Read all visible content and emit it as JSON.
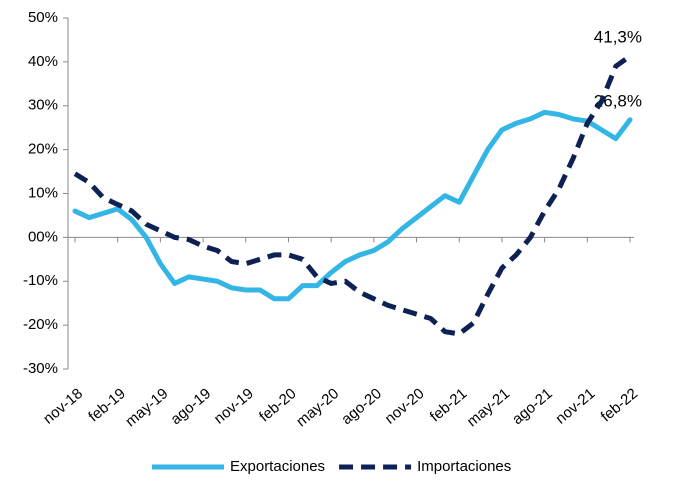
{
  "chart_data": {
    "type": "line",
    "categories": [
      "nov-18",
      null,
      null,
      "feb-19",
      null,
      null,
      "may-19",
      null,
      null,
      "ago-19",
      null,
      null,
      "nov-19",
      null,
      null,
      "feb-20",
      null,
      null,
      "may-20",
      null,
      null,
      "ago-20",
      null,
      null,
      "nov-20",
      null,
      null,
      "feb-21",
      null,
      null,
      "may-21",
      null,
      null,
      "ago-21",
      null,
      null,
      "nov-21",
      null,
      null,
      "feb-22"
    ],
    "series": [
      {
        "name": "Exportaciones",
        "color": "#33b5e5",
        "dash": false,
        "values": [
          6,
          4.5,
          5.5,
          6.5,
          4,
          0,
          -6,
          -10.5,
          -9,
          -9.5,
          -10,
          -11.5,
          -12,
          -12,
          -14,
          -14,
          -11,
          -11,
          -8,
          -5.5,
          -4,
          -3,
          -1,
          2,
          4.5,
          7,
          9.5,
          8,
          14,
          20,
          24.5,
          26,
          27,
          28.5,
          28,
          27,
          26.5,
          24.5,
          22.5,
          26.8
        ],
        "value_labels": [
          null,
          null,
          null,
          null,
          null,
          null,
          null,
          null,
          null,
          null,
          null,
          null,
          null,
          null,
          null,
          null,
          null,
          null,
          null,
          null,
          null,
          null,
          null,
          null,
          null,
          null,
          null,
          null,
          null,
          null,
          null,
          null,
          null,
          null,
          null,
          null,
          null,
          null,
          null,
          "26,8%"
        ]
      },
      {
        "name": "Importaciones",
        "color": "#0d2155",
        "dash": true,
        "values": [
          14.5,
          12.5,
          9,
          7.5,
          6,
          3,
          1.5,
          0,
          -0.5,
          -2,
          -3,
          -5.5,
          -6,
          -5,
          -4,
          -4,
          -5,
          -9,
          -10.5,
          -10,
          -12.5,
          -14,
          -15.5,
          -16.5,
          -17.5,
          -18.5,
          -21.5,
          -22,
          -19.5,
          -13,
          -7,
          -4,
          0,
          6,
          11,
          18,
          26,
          31,
          39,
          41.3
        ],
        "value_labels": [
          null,
          null,
          null,
          null,
          null,
          null,
          null,
          null,
          null,
          null,
          null,
          null,
          null,
          null,
          null,
          null,
          null,
          null,
          null,
          null,
          null,
          null,
          null,
          null,
          null,
          null,
          null,
          null,
          null,
          null,
          null,
          null,
          null,
          null,
          null,
          null,
          null,
          null,
          null,
          "41,3%"
        ]
      }
    ],
    "ylim": [
      -30,
      50
    ],
    "yticks": [
      {
        "value": -30,
        "label": "-30%"
      },
      {
        "value": -20,
        "label": "-20%"
      },
      {
        "value": -10,
        "label": "-10%"
      },
      {
        "value": 0,
        "label": "00%"
      },
      {
        "value": 10,
        "label": "10%"
      },
      {
        "value": 20,
        "label": "20%"
      },
      {
        "value": 30,
        "label": "30%"
      },
      {
        "value": 40,
        "label": "40%"
      },
      {
        "value": 50,
        "label": "50%"
      }
    ],
    "legend": "bottom"
  }
}
